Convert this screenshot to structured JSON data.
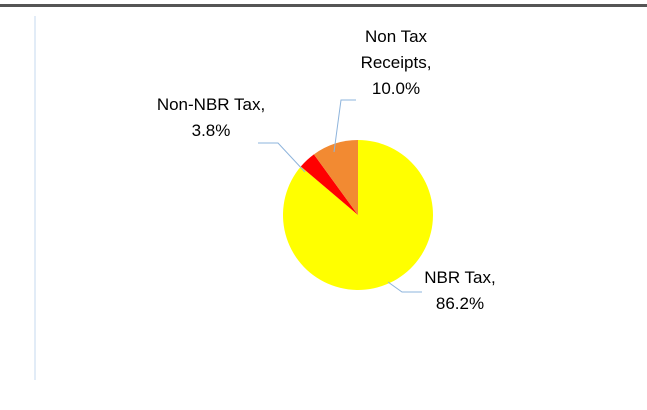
{
  "chart_data": {
    "type": "pie",
    "values": [
      86.2,
      3.8,
      10.0
    ],
    "value_labels": [
      "NBR Tax, 86.2%",
      "Non-NBR Tax, 3.8%",
      "Non Tax Receipts, 10.0%"
    ],
    "colors": [
      "#ffff00",
      "#ff0000",
      "#f28a32"
    ],
    "start_angle": 0,
    "direction": "clockwise"
  }
}
